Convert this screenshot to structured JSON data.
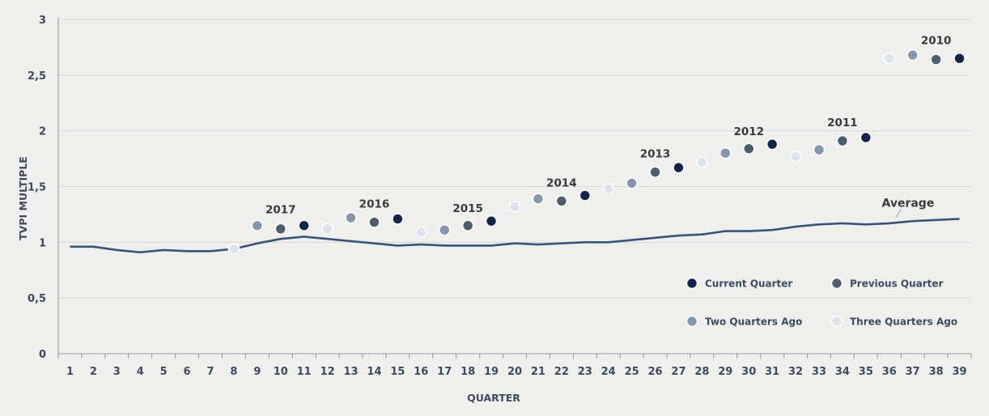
{
  "chart_data": {
    "type": "scatter",
    "title": "",
    "xlabel": "QUARTER",
    "ylabel": "TVPI MULTIPLE",
    "xlim": [
      1,
      39
    ],
    "ylim": [
      0,
      3
    ],
    "x_ticks": [
      1,
      2,
      3,
      4,
      5,
      6,
      7,
      8,
      9,
      10,
      11,
      12,
      13,
      14,
      15,
      16,
      17,
      18,
      19,
      20,
      21,
      22,
      23,
      24,
      25,
      26,
      27,
      28,
      29,
      30,
      31,
      32,
      33,
      34,
      35,
      36,
      37,
      38,
      39
    ],
    "y_ticks": [
      "0",
      "0,5",
      "1",
      "1,5",
      "2",
      "2,5",
      "3"
    ],
    "y_tick_values": [
      0,
      0.5,
      1,
      1.5,
      2,
      2.5,
      3
    ],
    "grid": "horizontal",
    "legend_position": "bottom-right",
    "colors": {
      "current": "#12244a",
      "previous": "#4e5d6d",
      "two_ago": "#8696ab",
      "three_ago": "#dde4ee",
      "line": "#3a5477",
      "grid": "#d9d9d9",
      "axis": "#9a9a9a"
    },
    "legend": [
      {
        "key": "current",
        "label": "Current Quarter"
      },
      {
        "key": "previous",
        "label": "Previous Quarter"
      },
      {
        "key": "two_ago",
        "label": "Two Quarters Ago"
      },
      {
        "key": "three_ago",
        "label": "Three Quarters Ago"
      }
    ],
    "series": [
      {
        "name": "Current Quarter",
        "key": "current",
        "points": [
          {
            "x": 11,
            "y": 1.15
          },
          {
            "x": 15,
            "y": 1.21
          },
          {
            "x": 19,
            "y": 1.19
          },
          {
            "x": 23,
            "y": 1.42
          },
          {
            "x": 27,
            "y": 1.67
          },
          {
            "x": 31,
            "y": 1.88
          },
          {
            "x": 35,
            "y": 1.94
          },
          {
            "x": 39,
            "y": 2.65
          }
        ]
      },
      {
        "name": "Previous Quarter",
        "key": "previous",
        "points": [
          {
            "x": 10,
            "y": 1.12
          },
          {
            "x": 14,
            "y": 1.18
          },
          {
            "x": 18,
            "y": 1.15
          },
          {
            "x": 22,
            "y": 1.37
          },
          {
            "x": 26,
            "y": 1.63
          },
          {
            "x": 30,
            "y": 1.84
          },
          {
            "x": 34,
            "y": 1.91
          },
          {
            "x": 38,
            "y": 2.64
          }
        ]
      },
      {
        "name": "Two Quarters Ago",
        "key": "two_ago",
        "points": [
          {
            "x": 9,
            "y": 1.15
          },
          {
            "x": 13,
            "y": 1.22
          },
          {
            "x": 17,
            "y": 1.11
          },
          {
            "x": 21,
            "y": 1.39
          },
          {
            "x": 25,
            "y": 1.53
          },
          {
            "x": 29,
            "y": 1.8
          },
          {
            "x": 33,
            "y": 1.83
          },
          {
            "x": 37,
            "y": 2.68
          }
        ]
      },
      {
        "name": "Three Quarters Ago",
        "key": "three_ago",
        "points": [
          {
            "x": 8,
            "y": 0.94
          },
          {
            "x": 12,
            "y": 1.12
          },
          {
            "x": 16,
            "y": 1.09
          },
          {
            "x": 20,
            "y": 1.32
          },
          {
            "x": 24,
            "y": 1.48
          },
          {
            "x": 28,
            "y": 1.72
          },
          {
            "x": 32,
            "y": 1.77
          },
          {
            "x": 36,
            "y": 2.65
          }
        ]
      },
      {
        "name": "Average",
        "key": "average",
        "type": "line",
        "x": [
          1,
          2,
          3,
          4,
          5,
          6,
          7,
          8,
          9,
          10,
          11,
          12,
          13,
          14,
          15,
          16,
          17,
          18,
          19,
          20,
          21,
          22,
          23,
          24,
          25,
          26,
          27,
          28,
          29,
          30,
          31,
          32,
          33,
          34,
          35,
          36,
          37,
          38,
          39
        ],
        "y": [
          0.96,
          0.96,
          0.93,
          0.91,
          0.93,
          0.92,
          0.92,
          0.94,
          0.99,
          1.03,
          1.05,
          1.03,
          1.01,
          0.99,
          0.97,
          0.98,
          0.97,
          0.97,
          0.97,
          0.99,
          0.98,
          0.99,
          1.0,
          1.0,
          1.02,
          1.04,
          1.06,
          1.07,
          1.1,
          1.1,
          1.11,
          1.14,
          1.16,
          1.17,
          1.16,
          1.17,
          1.19,
          1.2,
          1.21
        ]
      }
    ],
    "annotations": [
      {
        "text": "2017",
        "x": 10,
        "y": 1.26
      },
      {
        "text": "2016",
        "x": 14,
        "y": 1.31
      },
      {
        "text": "2015",
        "x": 18,
        "y": 1.27
      },
      {
        "text": "2014",
        "x": 22,
        "y": 1.5
      },
      {
        "text": "2013",
        "x": 26,
        "y": 1.76
      },
      {
        "text": "2012",
        "x": 30,
        "y": 1.96
      },
      {
        "text": "2011",
        "x": 34,
        "y": 2.04
      },
      {
        "text": "2010",
        "x": 38,
        "y": 2.78
      }
    ],
    "average_label": {
      "text": "Average",
      "x": 36.8,
      "y": 1.32
    }
  }
}
